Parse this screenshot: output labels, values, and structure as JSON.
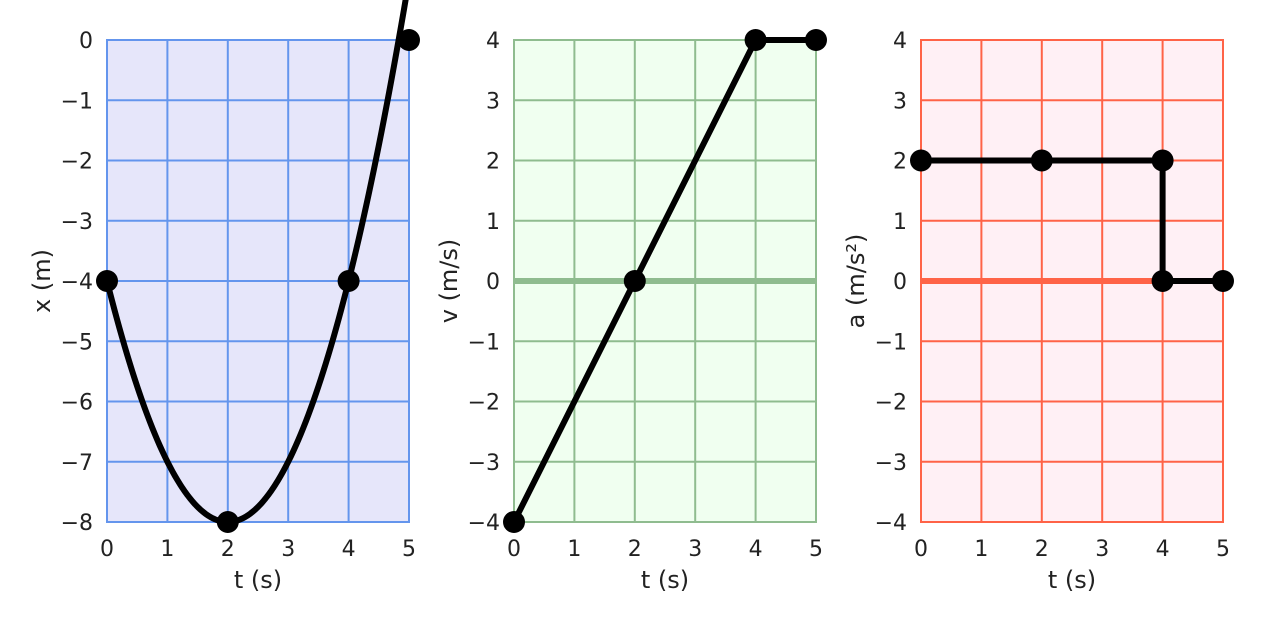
{
  "chart_data": [
    {
      "type": "line",
      "xlabel": "t (s)",
      "ylabel": "x (m)",
      "xlim": [
        0,
        5
      ],
      "ylim": [
        -8,
        0
      ],
      "xticks": [
        "0",
        "1",
        "2",
        "3",
        "4",
        "5"
      ],
      "yticks": [
        "0",
        "−1",
        "−2",
        "−3",
        "−4",
        "−5",
        "−6",
        "−7",
        "−8"
      ],
      "ytick_values": [
        0,
        -1,
        -2,
        -3,
        -4,
        -5,
        -6,
        -7,
        -8
      ],
      "grid": true,
      "colors": {
        "face": "#e6e6fa",
        "grid": "#6495ed",
        "zero_line": ""
      },
      "series": [
        {
          "curve": "quadratic",
          "x": [
            0,
            2,
            4,
            5
          ],
          "y": [
            -4,
            -8,
            -4,
            0
          ],
          "markers_x": [
            0,
            2,
            4,
            5
          ],
          "markers_y": [
            -4,
            -8,
            -4,
            0
          ]
        }
      ]
    },
    {
      "type": "line",
      "xlabel": "t (s)",
      "ylabel": "v (m/s)",
      "xlim": [
        0,
        5
      ],
      "ylim": [
        -4,
        4
      ],
      "xticks": [
        "0",
        "1",
        "2",
        "3",
        "4",
        "5"
      ],
      "yticks": [
        "4",
        "3",
        "2",
        "1",
        "0",
        "−1",
        "−2",
        "−3",
        "−4"
      ],
      "ytick_values": [
        4,
        3,
        2,
        1,
        0,
        -1,
        -2,
        -3,
        -4
      ],
      "grid": true,
      "colors": {
        "face": "#f0fff0",
        "grid": "#8fbc8f",
        "zero_line": "#8fbc8f"
      },
      "series": [
        {
          "curve": "linear",
          "x": [
            0,
            2,
            4,
            5
          ],
          "y": [
            -4,
            0,
            4,
            4
          ],
          "markers_x": [
            0,
            2,
            4,
            5
          ],
          "markers_y": [
            -4,
            0,
            4,
            4
          ]
        }
      ]
    },
    {
      "type": "line",
      "xlabel": "t (s)",
      "ylabel": "a (m/s²)",
      "xlim": [
        0,
        5
      ],
      "ylim": [
        -4,
        4
      ],
      "xticks": [
        "0",
        "1",
        "2",
        "3",
        "4",
        "5"
      ],
      "yticks": [
        "4",
        "3",
        "2",
        "1",
        "0",
        "−1",
        "−2",
        "−3",
        "−4"
      ],
      "ytick_values": [
        4,
        3,
        2,
        1,
        0,
        -1,
        -2,
        -3,
        -4
      ],
      "grid": true,
      "colors": {
        "face": "#fff0f5",
        "grid": "#ff6347",
        "zero_line": "#ff6347"
      },
      "series": [
        {
          "curve": "linear",
          "x": [
            0,
            2,
            4,
            4,
            5
          ],
          "y": [
            2,
            2,
            2,
            0,
            0
          ],
          "markers_x": [
            0,
            2,
            4,
            4,
            5
          ],
          "markers_y": [
            2,
            2,
            2,
            0,
            0
          ]
        }
      ]
    }
  ]
}
